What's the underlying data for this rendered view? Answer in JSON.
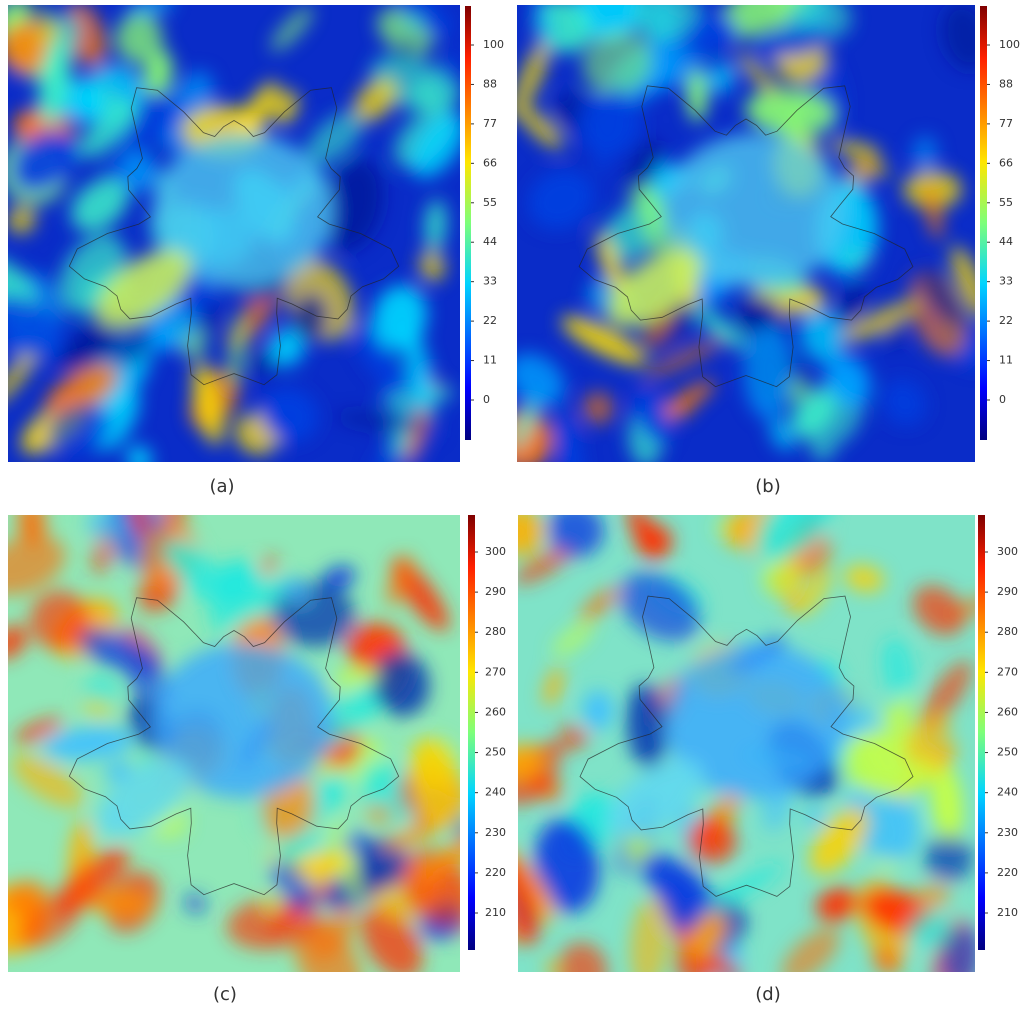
{
  "panels": [
    {
      "label": "(a)",
      "colorbar": {
        "ticks": [
          0,
          11,
          22,
          33,
          44,
          55,
          66,
          77,
          88,
          100
        ]
      }
    },
    {
      "label": "(b)",
      "colorbar": {
        "ticks": [
          0,
          11,
          22,
          33,
          44,
          55,
          66,
          77,
          88,
          100
        ]
      }
    },
    {
      "label": "(c)",
      "colorbar": {
        "ticks": [
          210,
          220,
          230,
          240,
          250,
          260,
          270,
          280,
          290,
          300
        ]
      }
    },
    {
      "label": "(d)",
      "colorbar": {
        "ticks": [
          210,
          220,
          230,
          240,
          250,
          260,
          270,
          280,
          290,
          300
        ]
      }
    }
  ]
}
